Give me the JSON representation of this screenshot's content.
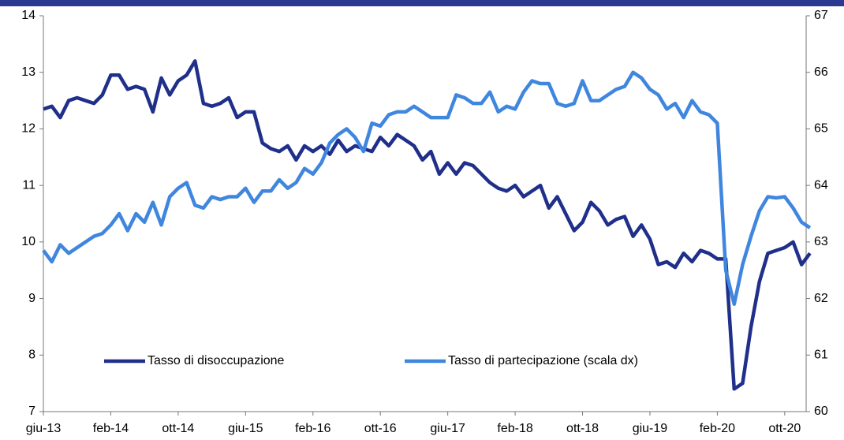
{
  "chart_data": {
    "type": "line",
    "categories": [
      "giu-13",
      null,
      null,
      null,
      null,
      null,
      null,
      null,
      "feb-14",
      null,
      null,
      null,
      null,
      null,
      null,
      null,
      "ott-14",
      null,
      null,
      null,
      null,
      null,
      null,
      null,
      "giu-15",
      null,
      null,
      null,
      null,
      null,
      null,
      null,
      "feb-16",
      null,
      null,
      null,
      null,
      null,
      null,
      null,
      "ott-16",
      null,
      null,
      null,
      null,
      null,
      null,
      null,
      "giu-17",
      null,
      null,
      null,
      null,
      null,
      null,
      null,
      "feb-18",
      null,
      null,
      null,
      null,
      null,
      null,
      null,
      "ott-18",
      null,
      null,
      null,
      null,
      null,
      null,
      null,
      "giu-19",
      null,
      null,
      null,
      null,
      null,
      null,
      null,
      "feb-20",
      null,
      null,
      null,
      null,
      null,
      null,
      null,
      "ott-20",
      null,
      null,
      null
    ],
    "series": [
      {
        "name": "Tasso di disoccupazione",
        "color": "#1f2f8a",
        "axis": "y",
        "values": [
          12.35,
          12.4,
          12.2,
          12.5,
          12.55,
          12.5,
          12.45,
          12.6,
          12.95,
          12.95,
          12.7,
          12.75,
          12.7,
          12.3,
          12.9,
          12.6,
          12.85,
          12.95,
          13.2,
          12.45,
          12.4,
          12.45,
          12.55,
          12.2,
          12.3,
          12.3,
          11.75,
          11.65,
          11.6,
          11.7,
          11.45,
          11.7,
          11.6,
          11.7,
          11.55,
          11.8,
          11.6,
          11.7,
          11.65,
          11.6,
          11.85,
          11.7,
          11.9,
          11.8,
          11.7,
          11.45,
          11.6,
          11.2,
          11.4,
          11.2,
          11.4,
          11.35,
          11.2,
          11.05,
          10.95,
          10.9,
          11.0,
          10.8,
          10.9,
          11.0,
          10.6,
          10.8,
          10.5,
          10.2,
          10.35,
          10.7,
          10.55,
          10.3,
          10.4,
          10.45,
          10.1,
          10.3,
          10.05,
          9.6,
          9.65,
          9.55,
          9.8,
          9.65,
          9.85,
          9.8,
          9.7,
          9.7,
          7.4,
          7.5,
          8.5,
          9.3,
          9.8,
          9.85,
          9.9,
          10.0,
          9.6,
          9.8
        ]
      },
      {
        "name": "Tasso di partecipazione (scala dx)",
        "color": "#3f86de",
        "axis": "y2",
        "values": [
          62.85,
          62.65,
          62.95,
          62.8,
          62.9,
          63.0,
          63.1,
          63.15,
          63.3,
          63.5,
          63.2,
          63.5,
          63.35,
          63.7,
          63.3,
          63.8,
          63.95,
          64.05,
          63.65,
          63.6,
          63.8,
          63.75,
          63.8,
          63.8,
          63.95,
          63.7,
          63.9,
          63.9,
          64.1,
          63.95,
          64.05,
          64.3,
          64.2,
          64.4,
          64.75,
          64.9,
          65.0,
          64.85,
          64.6,
          65.1,
          65.05,
          65.25,
          65.3,
          65.3,
          65.4,
          65.3,
          65.2,
          65.2,
          65.2,
          65.6,
          65.55,
          65.45,
          65.45,
          65.65,
          65.3,
          65.4,
          65.35,
          65.65,
          65.85,
          65.8,
          65.8,
          65.45,
          65.4,
          65.45,
          65.85,
          65.5,
          65.5,
          65.6,
          65.7,
          65.75,
          66.0,
          65.9,
          65.7,
          65.6,
          65.35,
          65.45,
          65.2,
          65.5,
          65.3,
          65.25,
          65.1,
          62.5,
          61.9,
          62.6,
          63.1,
          63.55,
          63.8,
          63.78,
          63.8,
          63.6,
          63.35,
          63.25
        ]
      }
    ],
    "ylim": [
      7,
      14
    ],
    "yticks": [
      7,
      8,
      9,
      10,
      11,
      12,
      13,
      14
    ],
    "y2lim": [
      60,
      67
    ],
    "y2ticks": [
      60,
      61,
      62,
      63,
      64,
      65,
      66,
      67
    ],
    "grid": false,
    "legend": "lower"
  }
}
